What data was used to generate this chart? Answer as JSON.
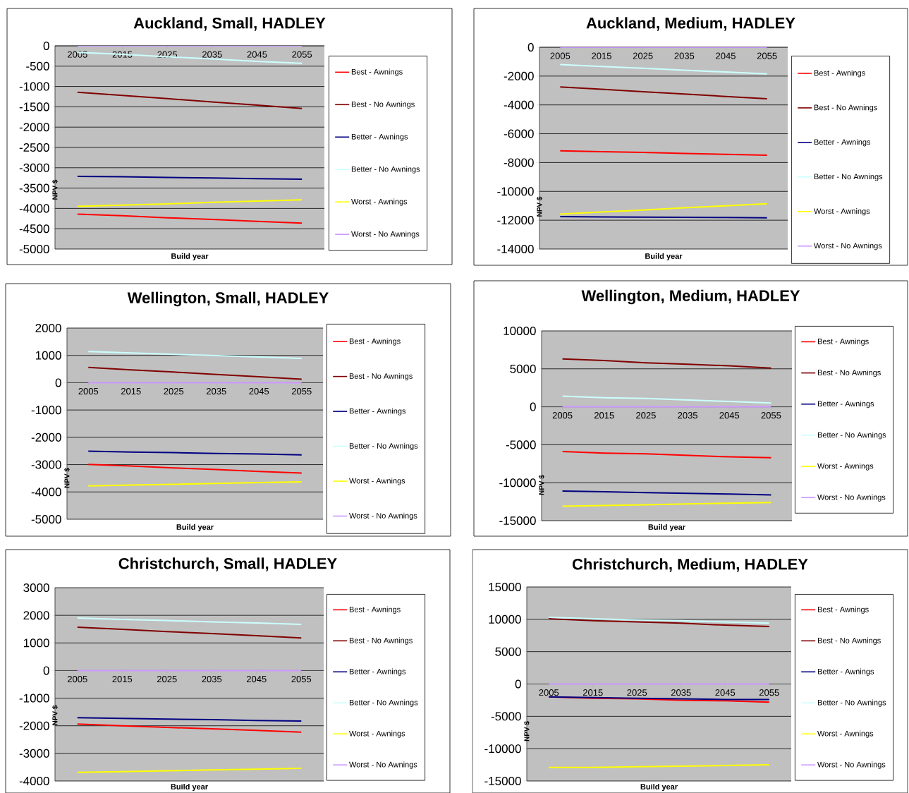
{
  "chart_data": [
    {
      "type": "line",
      "title": "Auckland, Small, HADLEY",
      "xlabel": "Build year",
      "ylabel": "NPV $",
      "categories": [
        "2005",
        "2015",
        "2025",
        "2035",
        "2045",
        "2055"
      ],
      "ylim": [
        -5000,
        0
      ],
      "yticks": [
        -5000,
        -4500,
        -4000,
        -3500,
        -3000,
        -2500,
        -2000,
        -1500,
        -1000,
        -500,
        0
      ],
      "grid": "y",
      "legend": "right",
      "series": [
        {
          "name": "Best - Awnings",
          "color": "#ff0000",
          "values": [
            -4140,
            -4180,
            -4230,
            -4270,
            -4320,
            -4360
          ]
        },
        {
          "name": "Best - No Awnings",
          "color": "#800000",
          "values": [
            -1140,
            -1220,
            -1300,
            -1380,
            -1460,
            -1540
          ]
        },
        {
          "name": "Better - Awnings",
          "color": "#000080",
          "values": [
            -3210,
            -3220,
            -3240,
            -3250,
            -3270,
            -3280
          ]
        },
        {
          "name": "Better - No Awnings",
          "color": "#ccffff",
          "values": [
            -160,
            -210,
            -270,
            -320,
            -380,
            -430
          ]
        },
        {
          "name": "Worst - Awnings",
          "color": "#ffff00",
          "values": [
            -3950,
            -3920,
            -3890,
            -3850,
            -3820,
            -3790
          ]
        },
        {
          "name": "Worst - No Awnings",
          "color": "#cc99ff",
          "values": [
            0,
            0,
            0,
            0,
            0,
            0
          ]
        }
      ]
    },
    {
      "type": "line",
      "title": "Auckland, Medium, HADLEY",
      "xlabel": "Build year",
      "ylabel": "NPV $",
      "categories": [
        "2005",
        "2015",
        "2025",
        "2035",
        "2045",
        "2055"
      ],
      "ylim": [
        -14000,
        0
      ],
      "yticks": [
        -14000,
        -12000,
        -10000,
        -8000,
        -6000,
        -4000,
        -2000,
        0
      ],
      "grid": "y",
      "legend": "right",
      "series": [
        {
          "name": "Best - Awnings",
          "color": "#ff0000",
          "values": [
            -7180,
            -7240,
            -7300,
            -7370,
            -7430,
            -7490
          ]
        },
        {
          "name": "Best - No Awnings",
          "color": "#800000",
          "values": [
            -2750,
            -2910,
            -3080,
            -3240,
            -3410,
            -3570
          ]
        },
        {
          "name": "Better - Awnings",
          "color": "#000080",
          "values": [
            -11750,
            -11770,
            -11780,
            -11800,
            -11810,
            -11830
          ]
        },
        {
          "name": "Better - No Awnings",
          "color": "#ccffff",
          "values": [
            -1200,
            -1330,
            -1460,
            -1590,
            -1720,
            -1850
          ]
        },
        {
          "name": "Worst - Awnings",
          "color": "#ffff00",
          "values": [
            -11580,
            -11430,
            -11290,
            -11140,
            -11000,
            -10850
          ]
        },
        {
          "name": "Worst - No Awnings",
          "color": "#cc99ff",
          "values": [
            0,
            0,
            0,
            0,
            0,
            0
          ]
        }
      ]
    },
    {
      "type": "line",
      "title": "Wellington, Small, HADLEY",
      "xlabel": "Build year",
      "ylabel": "NPV $",
      "categories": [
        "2005",
        "2015",
        "2025",
        "2035",
        "2045",
        "2055"
      ],
      "ylim": [
        -5000,
        2000
      ],
      "yticks": [
        -5000,
        -4000,
        -3000,
        -2000,
        -1000,
        0,
        1000,
        2000
      ],
      "grid": "y",
      "legend": "right",
      "series": [
        {
          "name": "Best - Awnings",
          "color": "#ff0000",
          "values": [
            -2990,
            -3050,
            -3120,
            -3180,
            -3250,
            -3310
          ]
        },
        {
          "name": "Best - No Awnings",
          "color": "#800000",
          "values": [
            560,
            470,
            390,
            300,
            220,
            130
          ]
        },
        {
          "name": "Better - Awnings",
          "color": "#000080",
          "values": [
            -2510,
            -2540,
            -2560,
            -2590,
            -2610,
            -2640
          ]
        },
        {
          "name": "Better - No Awnings",
          "color": "#ccffff",
          "values": [
            1140,
            1090,
            1040,
            990,
            940,
            890
          ]
        },
        {
          "name": "Worst - Awnings",
          "color": "#ffff00",
          "values": [
            -3780,
            -3750,
            -3720,
            -3690,
            -3660,
            -3630
          ]
        },
        {
          "name": "Worst - No Awnings",
          "color": "#cc99ff",
          "values": [
            0,
            0,
            0,
            0,
            0,
            0
          ]
        }
      ]
    },
    {
      "type": "line",
      "title": "Wellington, Medium, HADLEY",
      "xlabel": "Build year",
      "ylabel": "NPV $",
      "categories": [
        "2005",
        "2015",
        "2025",
        "2035",
        "2045",
        "2055"
      ],
      "ylim": [
        -15000,
        10000
      ],
      "yticks": [
        -15000,
        -10000,
        -5000,
        0,
        5000,
        10000
      ],
      "grid": "y",
      "legend": "right",
      "series": [
        {
          "name": "Best - Awnings",
          "color": "#ff0000",
          "values": [
            -5900,
            -6100,
            -6200,
            -6400,
            -6600,
            -6700
          ]
        },
        {
          "name": "Best - No Awnings",
          "color": "#800000",
          "values": [
            6300,
            6100,
            5800,
            5600,
            5400,
            5100
          ]
        },
        {
          "name": "Better - Awnings",
          "color": "#000080",
          "values": [
            -11100,
            -11200,
            -11300,
            -11400,
            -11500,
            -11600
          ]
        },
        {
          "name": "Better - No Awnings",
          "color": "#ccffff",
          "values": [
            1400,
            1200,
            1100,
            900,
            700,
            500
          ]
        },
        {
          "name": "Worst - Awnings",
          "color": "#ffff00",
          "values": [
            -13100,
            -13000,
            -12900,
            -12800,
            -12700,
            -12600
          ]
        },
        {
          "name": "Worst - No Awnings",
          "color": "#cc99ff",
          "values": [
            0,
            0,
            0,
            0,
            0,
            0
          ]
        }
      ]
    },
    {
      "type": "line",
      "title": "Christchurch, Small, HADLEY",
      "xlabel": "Build year",
      "ylabel": "NPV $",
      "categories": [
        "2005",
        "2015",
        "2025",
        "2035",
        "2045",
        "2055"
      ],
      "ylim": [
        -4000,
        3000
      ],
      "yticks": [
        -4000,
        -3000,
        -2000,
        -1000,
        0,
        1000,
        2000,
        3000
      ],
      "grid": "y",
      "legend": "right",
      "series": [
        {
          "name": "Best - Awnings",
          "color": "#ff0000",
          "values": [
            -1940,
            -2000,
            -2060,
            -2110,
            -2170,
            -2230
          ]
        },
        {
          "name": "Best - No Awnings",
          "color": "#800000",
          "values": [
            1570,
            1490,
            1410,
            1340,
            1260,
            1180
          ]
        },
        {
          "name": "Better - Awnings",
          "color": "#000080",
          "values": [
            -1710,
            -1730,
            -1760,
            -1780,
            -1810,
            -1830
          ]
        },
        {
          "name": "Better - No Awnings",
          "color": "#ccffff",
          "values": [
            1900,
            1850,
            1810,
            1760,
            1720,
            1670
          ]
        },
        {
          "name": "Worst - Awnings",
          "color": "#ffff00",
          "values": [
            -3690,
            -3660,
            -3630,
            -3600,
            -3570,
            -3540
          ]
        },
        {
          "name": "Worst - No Awnings",
          "color": "#cc99ff",
          "values": [
            0,
            0,
            0,
            0,
            0,
            0
          ]
        }
      ]
    },
    {
      "type": "line",
      "title": "Christchurch, Medium, HADLEY",
      "xlabel": "Build year",
      "ylabel": "NPV $",
      "categories": [
        "2005",
        "2015",
        "2025",
        "2035",
        "2045",
        "2055"
      ],
      "ylim": [
        -15000,
        15000
      ],
      "yticks": [
        -15000,
        -10000,
        -5000,
        0,
        5000,
        10000,
        15000
      ],
      "grid": "y",
      "legend": "right",
      "series": [
        {
          "name": "Best - Awnings",
          "color": "#ff0000",
          "values": [
            -2000,
            -2200,
            -2300,
            -2500,
            -2600,
            -2800
          ]
        },
        {
          "name": "Best - No Awnings",
          "color": "#800000",
          "values": [
            10100,
            9800,
            9600,
            9400,
            9100,
            8900
          ]
        },
        {
          "name": "Better - Awnings",
          "color": "#000080",
          "values": [
            -2000,
            -2100,
            -2200,
            -2300,
            -2400,
            -2400
          ]
        },
        {
          "name": "Better - No Awnings",
          "color": "#ccffff",
          "values": [
            10300,
            10100,
            9900,
            9800,
            9600,
            9400
          ]
        },
        {
          "name": "Worst - Awnings",
          "color": "#ffff00",
          "values": [
            -12900,
            -12900,
            -12800,
            -12700,
            -12600,
            -12500
          ]
        },
        {
          "name": "Worst - No Awnings",
          "color": "#cc99ff",
          "values": [
            0,
            0,
            0,
            0,
            0,
            0
          ]
        }
      ]
    }
  ]
}
